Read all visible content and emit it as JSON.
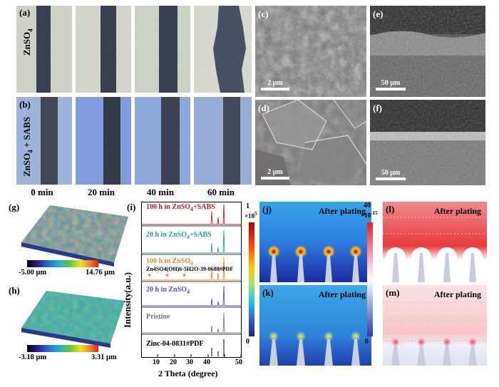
{
  "panels": {
    "a": "(a)",
    "b": "(b)",
    "c": "(c)",
    "d": "(d)",
    "e": "(e)",
    "f": "(f)",
    "g": "(g)",
    "h": "(h)",
    "i": "(i)",
    "j": "(j)",
    "k": "(k)",
    "l": "(l)",
    "m": "(m)"
  },
  "optical": {
    "row_a_label": "ZnSO",
    "row_a_sub": "4",
    "row_b_label": "ZnSO",
    "row_b_sub": "4",
    "row_b_suffix": " + SABS",
    "times": [
      "0 min",
      "20 min",
      "40 min",
      "60 min"
    ]
  },
  "sem": {
    "c_scale": "2 μm",
    "d_scale": "2 μm",
    "e_scale": "50 μm",
    "f_scale": "50 μm"
  },
  "topo": {
    "g_min": "-5.00 μm",
    "g_max": "14.76 μm",
    "h_min": "-3.18 μm",
    "h_max": "3.31 μm"
  },
  "xrd": {
    "ylabel": "Intensity(a.u.)",
    "xlabel": "2 Theta (degree)",
    "xticks": [
      "10",
      "20",
      "30",
      "40",
      "50"
    ],
    "traces": [
      {
        "label": "100 h in ZnSO",
        "sub": "4",
        "suffix": "+SABS",
        "color": "#b22222"
      },
      {
        "label": "20 h in ZnSO",
        "sub": "4",
        "suffix": "+SABS",
        "color": "#2a9d8f"
      },
      {
        "label": "100 h in ZnSO",
        "sub": "4",
        "suffix": "",
        "color": "#e08a2c"
      },
      {
        "label": "20 h in ZnSO",
        "sub": "4",
        "suffix": "",
        "color": "#5b4db5"
      },
      {
        "label": "Pristine",
        "sub": "",
        "suffix": "",
        "color": "#777777"
      },
      {
        "label": "Zinc-04-0831#PDF",
        "sub": "",
        "suffix": "",
        "color": "#000000"
      }
    ],
    "zhs_pdf": "Zn4SO4(OH)6·5H2O-39-0688#PDF"
  },
  "sim": {
    "title": "After plating",
    "cb1_max": "1",
    "cb1_unit": "×10",
    "cb1_exp": "5",
    "cb1_min": "0",
    "cb2_max": "40",
    "cb2_unit": "×10",
    "cb2_exp": "-15",
    "cb2_min": "0"
  }
}
